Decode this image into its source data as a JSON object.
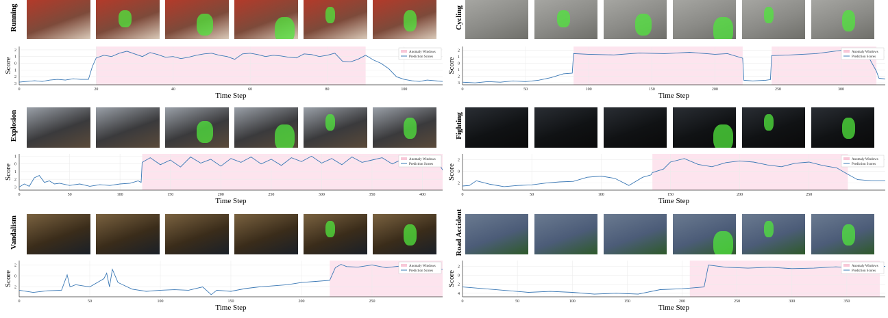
{
  "common": {
    "xlabel": "Time Step",
    "ylabel": "Score",
    "legend_anomaly": "Anomaly Windows",
    "legend_prediction": "Prediction Scores",
    "colors": {
      "window": "#fde4ee",
      "line": "#3a78b5",
      "legend_window": "#f8c8d8"
    }
  },
  "chart_data": [
    {
      "type": "line",
      "label": "Running",
      "xlim": [
        0,
        110
      ],
      "ylim": [
        -3.2,
        2.5
      ],
      "xticks": [
        0,
        20,
        40,
        60,
        80,
        100
      ],
      "yticks": [
        {
          "v": 2,
          "t": "2"
        },
        {
          "v": 1,
          "t": "1"
        },
        {
          "v": 0,
          "t": "0"
        },
        {
          "v": -1,
          "t": "1"
        },
        {
          "v": -2,
          "t": "2"
        },
        {
          "v": -3,
          "t": "3"
        }
      ],
      "windows": [
        [
          20,
          90
        ]
      ],
      "legend": "top-right",
      "x": [
        0,
        2,
        4,
        6,
        8,
        10,
        12,
        14,
        16,
        18,
        19,
        20,
        22,
        24,
        26,
        28,
        30,
        32,
        34,
        36,
        38,
        40,
        42,
        44,
        46,
        48,
        50,
        52,
        54,
        56,
        58,
        60,
        62,
        64,
        66,
        68,
        70,
        72,
        74,
        76,
        78,
        80,
        82,
        84,
        86,
        88,
        90,
        92,
        94,
        96,
        98,
        100,
        102,
        104,
        106,
        108,
        110
      ],
      "y": [
        -2.8,
        -2.7,
        -2.6,
        -2.7,
        -2.5,
        -2.4,
        -2.5,
        -2.3,
        -2.4,
        -2.4,
        -0.5,
        0.8,
        1.2,
        1.0,
        1.5,
        1.8,
        1.4,
        1.0,
        1.6,
        1.3,
        0.9,
        1.0,
        0.7,
        0.9,
        1.2,
        1.4,
        1.5,
        1.2,
        1.0,
        0.6,
        1.4,
        1.5,
        1.3,
        1.0,
        1.2,
        1.1,
        0.9,
        0.8,
        1.4,
        1.3,
        1.0,
        1.2,
        1.5,
        0.3,
        0.2,
        0.6,
        1.2,
        0.5,
        0.0,
        -0.8,
        -2.0,
        -2.4,
        -2.6,
        -2.7,
        -2.5,
        -2.6,
        -2.7
      ]
    },
    {
      "type": "line",
      "label": "Cycling",
      "xlim": [
        0,
        335
      ],
      "ylim": [
        -3.3,
        2.6
      ],
      "xticks": [
        0,
        50,
        100,
        150,
        200,
        250,
        300
      ],
      "yticks": [
        {
          "v": 2,
          "t": "2"
        },
        {
          "v": 1,
          "t": "1"
        },
        {
          "v": 0,
          "t": "0"
        },
        {
          "v": -1,
          "t": "1"
        },
        {
          "v": -2,
          "t": "2"
        },
        {
          "v": -3,
          "t": "3"
        }
      ],
      "windows": [
        [
          88,
          222
        ],
        [
          245,
          328
        ]
      ],
      "legend": "top-right",
      "x": [
        0,
        10,
        20,
        30,
        40,
        50,
        60,
        70,
        80,
        87,
        88,
        100,
        120,
        140,
        160,
        180,
        200,
        210,
        222,
        223,
        230,
        240,
        244,
        245,
        260,
        280,
        300,
        310,
        320,
        328,
        330,
        335
      ],
      "y": [
        -2.9,
        -3.0,
        -2.8,
        -2.9,
        -2.7,
        -2.8,
        -2.6,
        -2.2,
        -1.6,
        -1.5,
        1.5,
        1.4,
        1.3,
        1.6,
        1.5,
        1.7,
        1.4,
        1.5,
        0.8,
        -2.6,
        -2.7,
        -2.6,
        -2.5,
        1.2,
        1.3,
        1.5,
        2.0,
        1.8,
        1.6,
        -1.2,
        -2.3,
        -2.4
      ]
    },
    {
      "type": "line",
      "label": "Explosion",
      "xlim": [
        0,
        420
      ],
      "ylim": [
        -3.4,
        1.3
      ],
      "xticks": [
        0,
        50,
        100,
        150,
        200,
        250,
        300,
        350,
        400
      ],
      "yticks": [
        {
          "v": 1,
          "t": "1"
        },
        {
          "v": 0,
          "t": "0"
        },
        {
          "v": -1,
          "t": "1"
        },
        {
          "v": -2,
          "t": "2"
        },
        {
          "v": -3,
          "t": "3"
        }
      ],
      "windows": [
        [
          122,
          420
        ]
      ],
      "legend": "top-right",
      "x": [
        0,
        5,
        10,
        15,
        20,
        25,
        30,
        35,
        40,
        50,
        60,
        70,
        80,
        90,
        100,
        110,
        118,
        121,
        122,
        130,
        140,
        150,
        160,
        170,
        180,
        190,
        200,
        210,
        220,
        230,
        240,
        250,
        260,
        270,
        280,
        290,
        300,
        310,
        320,
        330,
        340,
        350,
        360,
        370,
        380,
        390,
        400,
        410,
        415,
        420
      ],
      "y": [
        -3.0,
        -2.6,
        -2.9,
        -1.8,
        -1.5,
        -2.4,
        -2.2,
        -2.6,
        -2.5,
        -2.8,
        -2.6,
        -2.9,
        -2.7,
        -2.8,
        -2.6,
        -2.5,
        -2.2,
        -2.4,
        0.2,
        0.8,
        -0.1,
        0.5,
        -0.4,
        0.9,
        0.1,
        0.6,
        -0.3,
        0.7,
        0.2,
        0.9,
        0.0,
        0.6,
        -0.2,
        0.8,
        0.3,
        1.0,
        0.1,
        0.7,
        -0.1,
        0.9,
        0.2,
        0.5,
        0.8,
        0.0,
        0.6,
        0.3,
        0.9,
        -0.2,
        0.4,
        -0.8
      ]
    },
    {
      "type": "line",
      "label": "Fighting",
      "xlim": [
        0,
        305
      ],
      "ylim": [
        -3.2,
        3.0
      ],
      "xticks": [
        0,
        50,
        100,
        150,
        200,
        250
      ],
      "yticks": [
        {
          "v": 2,
          "t": "2"
        },
        {
          "v": 0,
          "t": "0"
        },
        {
          "v": -2,
          "t": "2"
        }
      ],
      "windows": [
        [
          137,
          278
        ]
      ],
      "legend": "top-right",
      "x": [
        0,
        5,
        10,
        20,
        30,
        40,
        50,
        60,
        70,
        80,
        90,
        100,
        110,
        120,
        130,
        136,
        137,
        145,
        150,
        160,
        170,
        180,
        190,
        200,
        210,
        220,
        230,
        240,
        250,
        260,
        270,
        278,
        285,
        295,
        305
      ],
      "y": [
        -2.5,
        -2.4,
        -1.6,
        -2.2,
        -2.6,
        -2.4,
        -2.3,
        -2.0,
        -1.8,
        -1.7,
        -1.0,
        -0.8,
        -1.2,
        -2.4,
        -1.0,
        -0.6,
        -0.2,
        0.4,
        1.6,
        2.2,
        1.2,
        0.8,
        1.5,
        1.8,
        1.6,
        1.1,
        0.8,
        1.4,
        1.6,
        1.0,
        0.6,
        -0.5,
        -1.4,
        -1.6,
        -1.6
      ]
    },
    {
      "type": "line",
      "label": "Vandalism",
      "xlim": [
        0,
        300
      ],
      "ylim": [
        -3.8,
        2.8
      ],
      "xticks": [
        0,
        50,
        100,
        150,
        200,
        250
      ],
      "yticks": [
        {
          "v": 2,
          "t": "2"
        },
        {
          "v": 0,
          "t": "0"
        },
        {
          "v": -2,
          "t": "2"
        }
      ],
      "windows": [
        [
          220,
          300
        ]
      ],
      "legend": "top-right",
      "x": [
        0,
        10,
        20,
        30,
        34,
        36,
        40,
        50,
        60,
        62,
        64,
        66,
        70,
        80,
        90,
        100,
        110,
        120,
        130,
        136,
        140,
        150,
        160,
        170,
        180,
        190,
        200,
        210,
        220,
        224,
        228,
        232,
        240,
        250,
        260,
        270,
        280,
        290,
        300
      ],
      "y": [
        -2.6,
        -3.0,
        -2.7,
        -2.6,
        0.2,
        -2.0,
        -1.6,
        -2.0,
        -0.5,
        0.5,
        -2.0,
        1.2,
        -1.2,
        -2.4,
        -2.8,
        -2.6,
        -2.5,
        -2.6,
        -2.0,
        -3.4,
        -2.6,
        -2.8,
        -2.3,
        -2.0,
        -1.8,
        -1.6,
        -1.2,
        -1.0,
        -0.8,
        1.5,
        2.1,
        1.7,
        1.6,
        2.0,
        1.5,
        1.8,
        1.0,
        1.4,
        1.2
      ]
    },
    {
      "type": "line",
      "label": "Road Accident",
      "xlim": [
        0,
        385
      ],
      "ylim": [
        -4.8,
        3.3
      ],
      "xticks": [
        0,
        50,
        100,
        150,
        200,
        250,
        300,
        350
      ],
      "yticks": [
        {
          "v": 2,
          "t": "2"
        },
        {
          "v": 0,
          "t": "0"
        },
        {
          "v": -2,
          "t": "2"
        },
        {
          "v": -4,
          "t": "4"
        }
      ],
      "windows": [
        [
          207,
          380
        ]
      ],
      "legend": "top-right",
      "x": [
        0,
        20,
        40,
        60,
        80,
        100,
        120,
        140,
        160,
        180,
        200,
        210,
        220,
        224,
        240,
        260,
        280,
        300,
        320,
        340,
        360,
        370,
        380,
        385
      ],
      "y": [
        -2.6,
        -3.0,
        -3.4,
        -3.8,
        -3.6,
        -3.8,
        -4.2,
        -4.0,
        -4.2,
        -3.2,
        -3.0,
        -2.8,
        -2.6,
        2.3,
        1.8,
        1.6,
        1.8,
        1.5,
        1.6,
        1.9,
        1.6,
        1.9,
        2.0,
        2.0
      ]
    }
  ]
}
